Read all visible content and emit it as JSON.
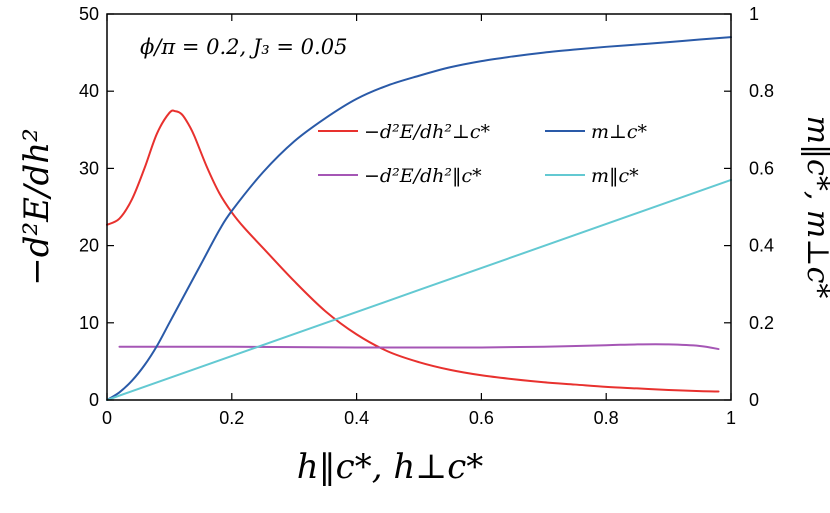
{
  "chart_data": {
    "type": "line",
    "annotation": "ϕ/π = 0.2,  J₃ = 0.05",
    "xlabel": "h‖c*,  h⊥c*",
    "ylabel": "−d²E/dh²",
    "y2label": "m‖c*,  m⊥c*",
    "xlim": [
      0,
      1
    ],
    "ylim": [
      0,
      50
    ],
    "y2lim": [
      0,
      1
    ],
    "xticks": [
      "0",
      "0.2",
      "0.4",
      "0.6",
      "0.8",
      "1"
    ],
    "yticks": [
      "0",
      "10",
      "20",
      "30",
      "40",
      "50"
    ],
    "y2ticks": [
      "0",
      "0.2",
      "0.4",
      "0.6",
      "0.8",
      "1"
    ],
    "grid": false,
    "legend_position": "upper-right",
    "series": [
      {
        "name": "−d²E/dh²⊥c*",
        "axis": "left",
        "color": "#e8312e",
        "x": [
          0,
          0.02,
          0.04,
          0.06,
          0.08,
          0.1,
          0.11,
          0.12,
          0.13,
          0.14,
          0.16,
          0.18,
          0.2,
          0.22,
          0.25,
          0.3,
          0.35,
          0.4,
          0.45,
          0.5,
          0.55,
          0.6,
          0.65,
          0.7,
          0.75,
          0.8,
          0.85,
          0.9,
          0.95,
          0.98
        ],
        "y": [
          22.7,
          23.5,
          26.0,
          30.0,
          34.5,
          37.2,
          37.4,
          37.0,
          35.8,
          34.2,
          30.2,
          26.8,
          24.3,
          22.3,
          19.7,
          15.4,
          11.5,
          8.5,
          6.3,
          4.9,
          3.9,
          3.2,
          2.7,
          2.3,
          2.0,
          1.7,
          1.5,
          1.3,
          1.15,
          1.1
        ]
      },
      {
        "name": "−d²E/dh²‖c*",
        "axis": "left",
        "color": "#a556b5",
        "x": [
          0.02,
          0.1,
          0.2,
          0.3,
          0.4,
          0.5,
          0.6,
          0.7,
          0.8,
          0.85,
          0.9,
          0.95,
          0.98
        ],
        "y": [
          6.9,
          6.9,
          6.9,
          6.85,
          6.8,
          6.8,
          6.8,
          6.9,
          7.1,
          7.2,
          7.2,
          7.0,
          6.6
        ]
      },
      {
        "name": "m⊥c*",
        "axis": "right",
        "color": "#2a5aa8",
        "x": [
          0,
          0.02,
          0.04,
          0.06,
          0.08,
          0.1,
          0.12,
          0.15,
          0.18,
          0.2,
          0.25,
          0.3,
          0.35,
          0.4,
          0.45,
          0.5,
          0.55,
          0.6,
          0.65,
          0.7,
          0.75,
          0.8,
          0.85,
          0.9,
          0.95,
          1.0
        ],
        "y": [
          0,
          0.02,
          0.05,
          0.09,
          0.14,
          0.2,
          0.26,
          0.35,
          0.44,
          0.49,
          0.59,
          0.67,
          0.73,
          0.78,
          0.815,
          0.84,
          0.862,
          0.878,
          0.89,
          0.9,
          0.908,
          0.915,
          0.921,
          0.927,
          0.934,
          0.94
        ]
      },
      {
        "name": "m‖c*",
        "axis": "right",
        "color": "#63c9d2",
        "x": [
          0,
          1.0
        ],
        "y": [
          0,
          0.57
        ]
      }
    ]
  }
}
